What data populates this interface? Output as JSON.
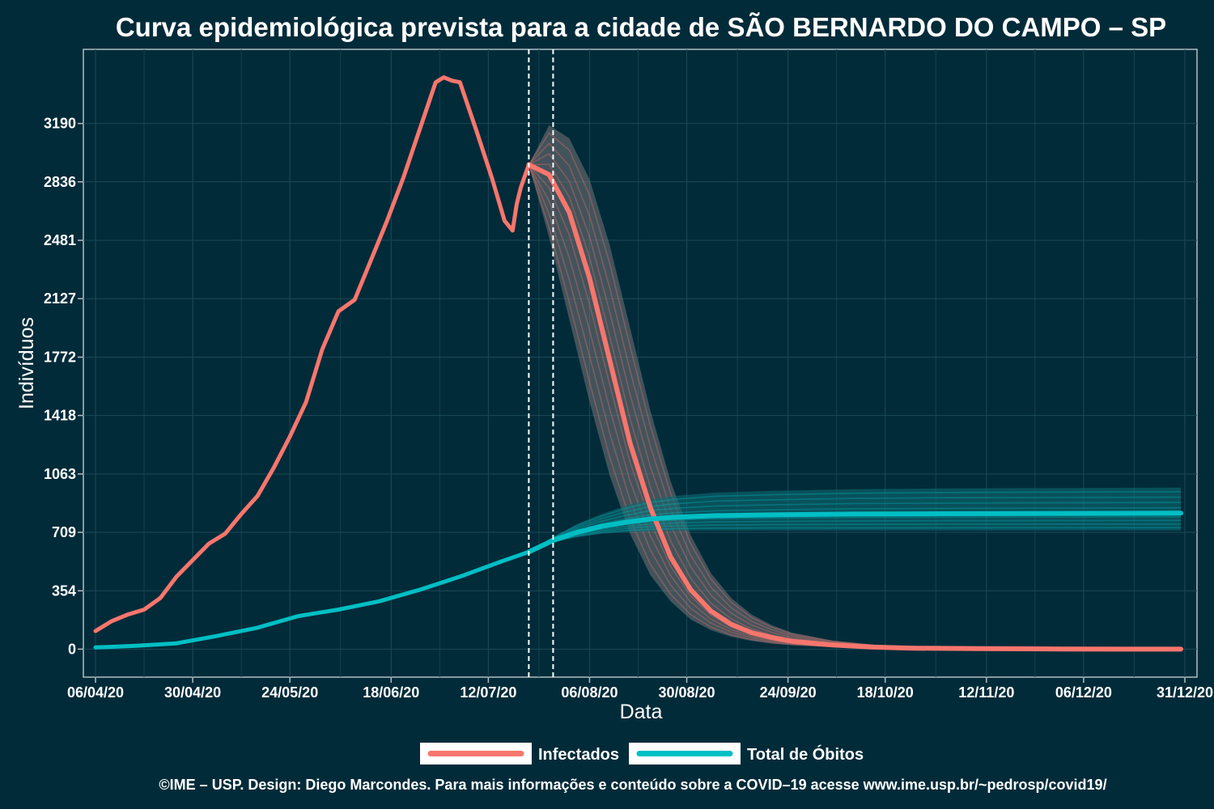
{
  "chart_data": {
    "type": "line",
    "title": "Curva epidemiológica prevista para a cidade de SÃO BERNARDO DO CAMPO – SP",
    "xlabel": "Data",
    "ylabel": "Indivíduos",
    "x_tick_labels": [
      "06/04/20",
      "30/04/20",
      "24/05/20",
      "18/06/20",
      "12/07/20",
      "06/08/20",
      "30/08/20",
      "24/09/20",
      "18/10/20",
      "12/11/20",
      "06/12/20",
      "31/12/20"
    ],
    "y_ticks": [
      0,
      354,
      709,
      1063,
      1418,
      1772,
      2127,
      2481,
      2836,
      3190
    ],
    "xlim": [
      "2020-04-03",
      "2021-01-03"
    ],
    "ylim": [
      -170,
      3640
    ],
    "grid": true,
    "legend_position": "bottom",
    "vertical_dashed_lines": [
      "2020-07-22",
      "2020-07-28"
    ],
    "series": [
      {
        "name": "Infectados",
        "color": "#f8766d",
        "observed": {
          "x": [
            "2020-04-06",
            "2020-04-10",
            "2020-04-14",
            "2020-04-18",
            "2020-04-22",
            "2020-04-26",
            "2020-04-30",
            "2020-05-04",
            "2020-05-08",
            "2020-05-12",
            "2020-05-16",
            "2020-05-20",
            "2020-05-24",
            "2020-05-28",
            "2020-06-01",
            "2020-06-05",
            "2020-06-09",
            "2020-06-13",
            "2020-06-17",
            "2020-06-21",
            "2020-06-25",
            "2020-06-29",
            "2020-07-01",
            "2020-07-03",
            "2020-07-05",
            "2020-07-09",
            "2020-07-13",
            "2020-07-16",
            "2020-07-18",
            "2020-07-19",
            "2020-07-20",
            "2020-07-22"
          ],
          "y": [
            110,
            170,
            210,
            240,
            310,
            440,
            540,
            640,
            700,
            820,
            930,
            1100,
            1290,
            1500,
            1820,
            2050,
            2120,
            2360,
            2600,
            2860,
            3150,
            3440,
            3470,
            3450,
            3440,
            3150,
            2850,
            2600,
            2540,
            2700,
            2800,
            2940
          ]
        },
        "projection": {
          "x": [
            "2020-07-22",
            "2020-07-27",
            "2020-08-01",
            "2020-08-06",
            "2020-08-11",
            "2020-08-16",
            "2020-08-21",
            "2020-08-26",
            "2020-08-31",
            "2020-09-05",
            "2020-09-10",
            "2020-09-15",
            "2020-09-20",
            "2020-09-25",
            "2020-10-05",
            "2020-10-15",
            "2020-10-25",
            "2020-11-10",
            "2020-12-01",
            "2020-12-30"
          ],
          "y": [
            2940,
            2880,
            2650,
            2250,
            1750,
            1250,
            860,
            560,
            360,
            230,
            150,
            100,
            70,
            48,
            25,
            12,
            6,
            3,
            1,
            0
          ],
          "band_low": [
            2940,
            2500,
            2000,
            1500,
            1050,
            700,
            450,
            290,
            180,
            115,
            75,
            50,
            34,
            24,
            12,
            6,
            3,
            1,
            0,
            0
          ],
          "band_high": [
            2940,
            3180,
            3100,
            2850,
            2450,
            1950,
            1450,
            1020,
            690,
            460,
            310,
            210,
            145,
            100,
            52,
            27,
            14,
            6,
            2,
            0
          ]
        }
      },
      {
        "name": "Total de Óbitos",
        "color": "#00bfc4",
        "observed": {
          "x": [
            "2020-04-06",
            "2020-04-16",
            "2020-04-26",
            "2020-05-06",
            "2020-05-16",
            "2020-05-26",
            "2020-06-05",
            "2020-06-15",
            "2020-06-25",
            "2020-07-05",
            "2020-07-15",
            "2020-07-22"
          ],
          "y": [
            10,
            20,
            35,
            80,
            130,
            200,
            240,
            290,
            360,
            440,
            530,
            590
          ]
        },
        "projection": {
          "x": [
            "2020-07-22",
            "2020-07-28",
            "2020-08-03",
            "2020-08-09",
            "2020-08-15",
            "2020-08-21",
            "2020-08-27",
            "2020-09-06",
            "2020-09-20",
            "2020-10-10",
            "2020-11-01",
            "2020-12-30"
          ],
          "y": [
            590,
            660,
            710,
            745,
            770,
            790,
            800,
            810,
            815,
            820,
            822,
            825
          ],
          "band_low": [
            590,
            650,
            680,
            700,
            710,
            715,
            718,
            720,
            720,
            720,
            720,
            720
          ],
          "band_high": [
            590,
            680,
            760,
            820,
            870,
            910,
            930,
            950,
            960,
            970,
            975,
            980
          ]
        }
      }
    ]
  },
  "footer": "©IME – USP. Design: Diego Marcondes. Para mais informações e conteúdo sobre a COVID–19 acesse www.ime.usp.br/~pedrosp/covid19/"
}
